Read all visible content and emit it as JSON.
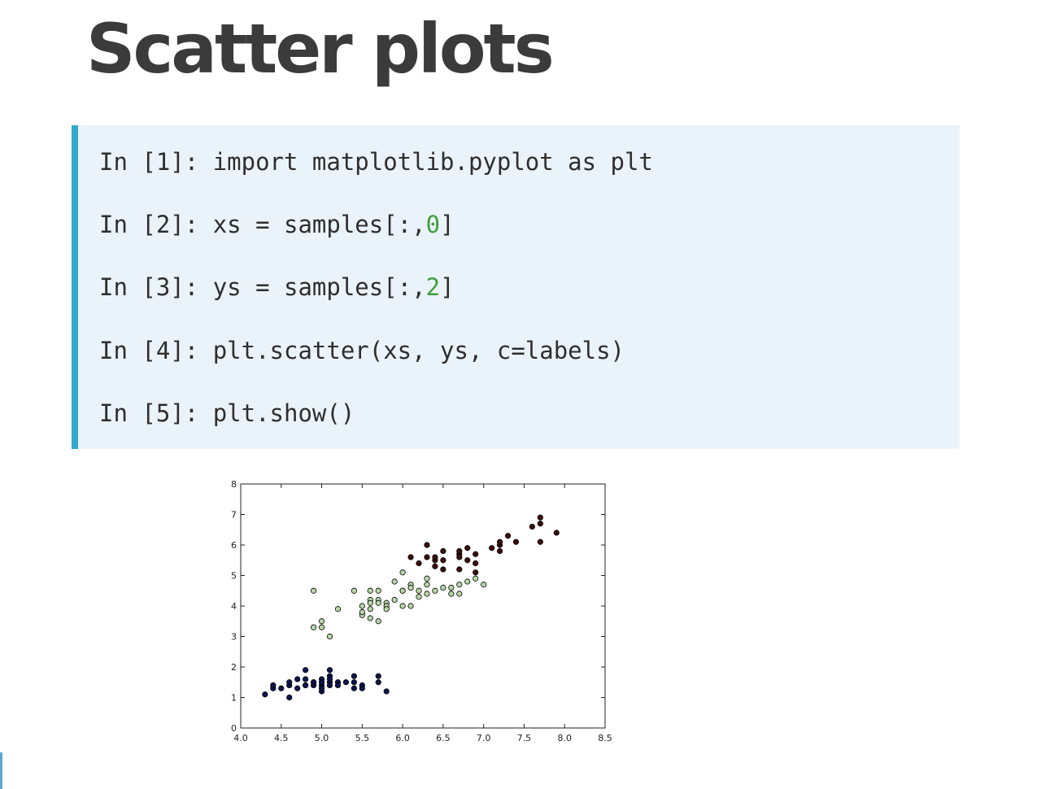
{
  "page": {
    "title": "Scatter plots"
  },
  "code": {
    "lines": [
      {
        "prompt": "In [1]: ",
        "pre": "import matplotlib.pyplot as plt",
        "num": "",
        "post": ""
      },
      {
        "prompt": "In [2]: ",
        "pre": "xs = samples[:,",
        "num": "0",
        "post": "]"
      },
      {
        "prompt": "In [3]: ",
        "pre": "ys = samples[:,",
        "num": "2",
        "post": "]"
      },
      {
        "prompt": "In [4]: ",
        "pre": "plt.scatter(xs, ys, c=labels)",
        "num": "",
        "post": ""
      },
      {
        "prompt": "In [5]: ",
        "pre": "plt.show()",
        "num": "",
        "post": ""
      }
    ],
    "colors": {
      "accent_bar": "#33a9cb",
      "background": "#ebf3fa",
      "number": "#3f9e3a"
    }
  },
  "chart_data": {
    "type": "scatter",
    "xlim": [
      4.0,
      8.5
    ],
    "ylim": [
      0,
      8
    ],
    "x_ticks": [
      "4.0",
      "4.5",
      "5.0",
      "5.5",
      "6.0",
      "6.5",
      "7.0",
      "7.5",
      "8.0",
      "8.5"
    ],
    "y_ticks": [
      "0",
      "1",
      "2",
      "3",
      "4",
      "5",
      "6",
      "7",
      "8"
    ],
    "grid": false,
    "legend": "none",
    "series": [
      {
        "color": "#0b1550",
        "points": [
          [
            4.3,
            1.1
          ],
          [
            4.4,
            1.3
          ],
          [
            4.4,
            1.4
          ],
          [
            4.5,
            1.3
          ],
          [
            4.6,
            1.4
          ],
          [
            4.6,
            1.5
          ],
          [
            4.6,
            1.0
          ],
          [
            4.7,
            1.3
          ],
          [
            4.7,
            1.6
          ],
          [
            4.8,
            1.4
          ],
          [
            4.8,
            1.6
          ],
          [
            4.8,
            1.9
          ],
          [
            4.8,
            1.4
          ],
          [
            4.9,
            1.5
          ],
          [
            4.9,
            1.4
          ],
          [
            4.9,
            1.5
          ],
          [
            5.0,
            1.4
          ],
          [
            5.0,
            1.6
          ],
          [
            5.0,
            1.2
          ],
          [
            5.0,
            1.3
          ],
          [
            5.0,
            1.5
          ],
          [
            5.1,
            1.5
          ],
          [
            5.1,
            1.4
          ],
          [
            5.1,
            1.7
          ],
          [
            5.1,
            1.9
          ],
          [
            5.1,
            1.6
          ],
          [
            5.2,
            1.5
          ],
          [
            5.2,
            1.4
          ],
          [
            5.3,
            1.5
          ],
          [
            5.4,
            1.5
          ],
          [
            5.4,
            1.7
          ],
          [
            5.4,
            1.3
          ],
          [
            5.5,
            1.4
          ],
          [
            5.5,
            1.3
          ],
          [
            5.7,
            1.5
          ],
          [
            5.7,
            1.7
          ],
          [
            5.8,
            1.2
          ]
        ]
      },
      {
        "color": "#b6d7a8",
        "points": [
          [
            4.9,
            4.5
          ],
          [
            4.9,
            3.3
          ],
          [
            5.0,
            3.5
          ],
          [
            5.0,
            3.3
          ],
          [
            5.1,
            3.0
          ],
          [
            5.2,
            3.9
          ],
          [
            5.4,
            4.5
          ],
          [
            5.5,
            4.0
          ],
          [
            5.5,
            3.7
          ],
          [
            5.5,
            3.8
          ],
          [
            5.6,
            4.5
          ],
          [
            5.6,
            3.6
          ],
          [
            5.6,
            4.2
          ],
          [
            5.6,
            4.1
          ],
          [
            5.6,
            3.9
          ],
          [
            5.7,
            4.2
          ],
          [
            5.7,
            3.5
          ],
          [
            5.7,
            4.1
          ],
          [
            5.7,
            4.5
          ],
          [
            5.8,
            4.1
          ],
          [
            5.8,
            4.0
          ],
          [
            5.8,
            3.9
          ],
          [
            5.9,
            4.8
          ],
          [
            5.9,
            4.2
          ],
          [
            6.0,
            4.5
          ],
          [
            6.0,
            4.0
          ],
          [
            6.0,
            5.1
          ],
          [
            6.0,
            4.5
          ],
          [
            6.1,
            4.7
          ],
          [
            6.1,
            4.0
          ],
          [
            6.1,
            4.6
          ],
          [
            6.2,
            4.3
          ],
          [
            6.2,
            4.5
          ],
          [
            6.3,
            4.9
          ],
          [
            6.3,
            4.7
          ],
          [
            6.3,
            4.4
          ],
          [
            6.4,
            4.5
          ],
          [
            6.5,
            4.6
          ],
          [
            6.6,
            4.6
          ],
          [
            6.6,
            4.4
          ],
          [
            6.7,
            4.7
          ],
          [
            6.7,
            4.4
          ],
          [
            6.8,
            4.8
          ],
          [
            6.9,
            4.9
          ],
          [
            7.0,
            4.7
          ]
        ]
      },
      {
        "color": "#3d0c0c",
        "points": [
          [
            6.1,
            5.6
          ],
          [
            6.2,
            5.4
          ],
          [
            6.3,
            6.0
          ],
          [
            6.3,
            5.6
          ],
          [
            6.4,
            5.3
          ],
          [
            6.4,
            5.5
          ],
          [
            6.4,
            5.6
          ],
          [
            6.5,
            5.8
          ],
          [
            6.5,
            5.5
          ],
          [
            6.5,
            5.2
          ],
          [
            6.7,
            5.7
          ],
          [
            6.7,
            5.6
          ],
          [
            6.7,
            5.8
          ],
          [
            6.7,
            5.2
          ],
          [
            6.8,
            5.5
          ],
          [
            6.8,
            5.9
          ],
          [
            6.9,
            5.4
          ],
          [
            6.9,
            5.1
          ],
          [
            6.9,
            5.7
          ],
          [
            7.1,
            5.9
          ],
          [
            7.2,
            6.0
          ],
          [
            7.2,
            5.8
          ],
          [
            7.2,
            6.1
          ],
          [
            7.3,
            6.3
          ],
          [
            7.4,
            6.1
          ],
          [
            7.6,
            6.6
          ],
          [
            7.7,
            6.7
          ],
          [
            7.7,
            6.9
          ],
          [
            7.7,
            6.1
          ],
          [
            7.9,
            6.4
          ]
        ]
      }
    ]
  }
}
